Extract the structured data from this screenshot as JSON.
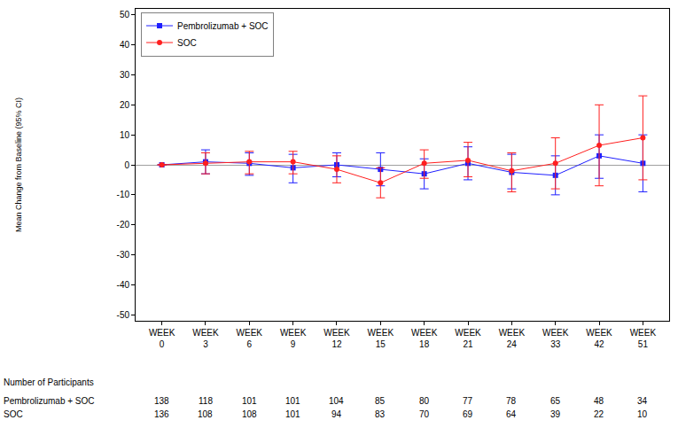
{
  "chart_data": {
    "type": "line",
    "y_label": "Mean Change from Baseline (95% CI)",
    "categories": [
      "WEEK 0",
      "WEEK 3",
      "WEEK 6",
      "WEEK 9",
      "WEEK 12",
      "WEEK 15",
      "WEEK 18",
      "WEEK 21",
      "WEEK 24",
      "WEEK 33",
      "WEEK 42",
      "WEEK 51"
    ],
    "series": [
      {
        "name": "Pembrolizumab + SOC",
        "color": "#1f1fff",
        "marker": "square",
        "values": [
          0,
          1,
          0.5,
          -1,
          0,
          -1.5,
          -3,
          0.5,
          -2.5,
          -3.5,
          3,
          0.5
        ],
        "ci_lower": [
          0,
          -3,
          -3.5,
          -6,
          -4,
          -7,
          -8,
          -5,
          -8,
          -10,
          -4.5,
          -9
        ],
        "ci_upper": [
          0,
          5,
          4,
          3.5,
          4,
          4,
          2,
          6,
          3.5,
          3,
          10,
          10
        ]
      },
      {
        "name": "SOC",
        "color": "#ff1f1f",
        "marker": "circle",
        "values": [
          0,
          0.5,
          1,
          1,
          -1.5,
          -6,
          0.5,
          1.5,
          -2,
          0.5,
          6.5,
          9
        ],
        "ci_lower": [
          0,
          -3,
          -3,
          -3,
          -6,
          -11,
          -4.5,
          -4,
          -9,
          -8,
          -7,
          -5
        ],
        "ci_upper": [
          0,
          4,
          4.5,
          4.5,
          3,
          -1,
          5,
          7.5,
          4,
          9,
          20,
          23
        ]
      }
    ],
    "ylim": [
      -52,
      52
    ],
    "yticks": [
      -50,
      -40,
      -30,
      -20,
      -10,
      0,
      10,
      20,
      30,
      40,
      50
    ],
    "grid": false,
    "legend": "upper left",
    "table": {
      "title": "Number of Participants",
      "rows": [
        {
          "name": "Pembrolizumab + SOC",
          "values": [
            138,
            118,
            101,
            101,
            104,
            85,
            80,
            77,
            78,
            65,
            48,
            34
          ]
        },
        {
          "name": "SOC",
          "values": [
            136,
            108,
            108,
            101,
            94,
            83,
            70,
            69,
            64,
            39,
            22,
            10
          ]
        }
      ]
    }
  }
}
